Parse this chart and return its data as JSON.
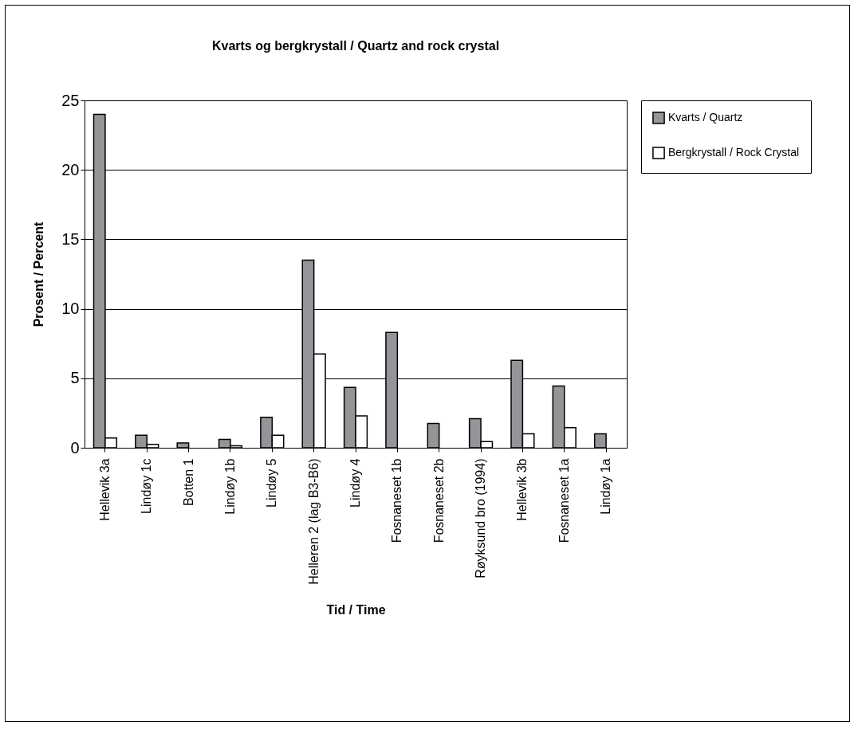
{
  "chart_data": {
    "type": "bar",
    "title": "Kvarts og bergkrystall / Quartz and rock crystal",
    "xlabel": "Tid / Time",
    "ylabel": "Prosent / Percent",
    "categories": [
      "Hellevik 3a",
      "Lindøy 1c",
      "Botten 1",
      "Lindøy 1b",
      "Lindøy 5",
      "Helleren 2 (lag B3-B6)",
      "Lindøy 4",
      "Fosnaneset 1b",
      "Fosnaneset 2b",
      "Røyksund bro (1994)",
      "Hellevik 3b",
      "Fosnaneset 1a",
      "Lindøy 1a"
    ],
    "series": [
      {
        "name": "Kvarts / Quartz",
        "color": "#939598",
        "values": [
          24.0,
          0.9,
          0.35,
          0.6,
          2.2,
          13.5,
          4.35,
          8.3,
          1.75,
          2.1,
          6.3,
          4.45,
          1.0
        ]
      },
      {
        "name": "Bergkrystall / Rock Crystal",
        "color": "#ffffff",
        "values": [
          0.7,
          0.25,
          null,
          0.15,
          0.9,
          6.75,
          2.3,
          null,
          null,
          0.45,
          1.0,
          1.45,
          null
        ]
      }
    ],
    "ylim": [
      0,
      25
    ],
    "yticks": [
      0,
      5,
      10,
      15,
      20,
      25
    ],
    "grid": "y",
    "legend": "right"
  }
}
